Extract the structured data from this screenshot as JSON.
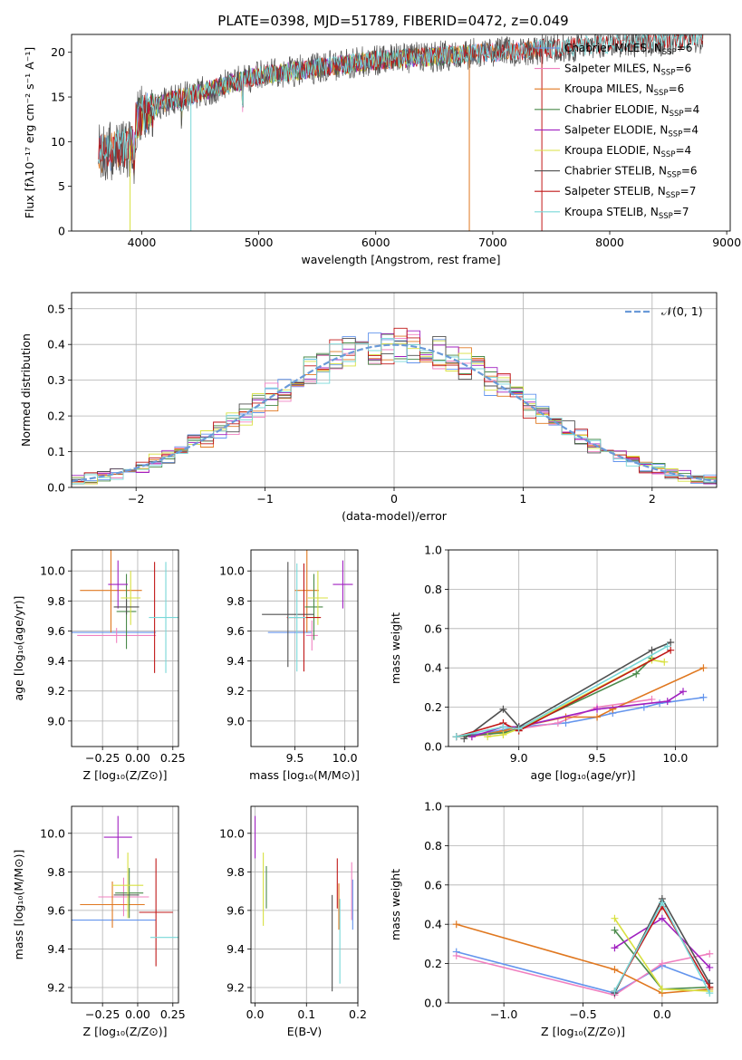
{
  "figure": {
    "title": "PLATE=0398, MJD=51789, FIBERID=0472, z=0.049"
  },
  "colors": {
    "Chabrier MILES": "#6495ed",
    "Salpeter MILES": "#f080c0",
    "Kroupa MILES": "#e07820",
    "Chabrier ELODIE": "#4a8a4a",
    "Salpeter ELODIE": "#a020c0",
    "Kroupa ELODIE": "#d8e040",
    "Chabrier STELIB": "#505050",
    "Salpeter STELIB": "#c01818",
    "Kroupa STELIB": "#78d8d8",
    "gauss": "#6a9ad8"
  },
  "chart_data": [
    {
      "id": "spectrum",
      "type": "line",
      "xlabel": "wavelength [Angstrom, rest frame]",
      "ylabel": "Flux [fλ10⁻¹⁷ erg cm⁻² s⁻¹ A⁻¹]",
      "xlim": [
        3400,
        9030
      ],
      "ylim": [
        0,
        22
      ],
      "xticks": [
        "4000",
        "5000",
        "6000",
        "7000",
        "8000",
        "9000"
      ],
      "xtick_values": [
        4000,
        5000,
        6000,
        7000,
        8000,
        9000
      ],
      "yticks": [
        "0",
        "5",
        "10",
        "15",
        "20"
      ],
      "ytick_values": [
        0,
        5,
        10,
        15,
        20
      ],
      "legend_position": "upper right",
      "series": [
        {
          "name": "Chabrier MILES, N_SSP=6",
          "label_main": "Chabrier MILES, N",
          "label_sub": "SSP",
          "label_end": "=6",
          "color_key": "Chabrier MILES",
          "x_range": [
            3630,
            7420
          ]
        },
        {
          "name": "Salpeter MILES, N_SSP=6",
          "label_main": "Salpeter MILES, N",
          "label_sub": "SSP",
          "label_end": "=6",
          "color_key": "Salpeter MILES",
          "x_range": [
            3630,
            7420
          ]
        },
        {
          "name": "Kroupa MILES, N_SSP=6",
          "label_main": "Kroupa MILES, N",
          "label_sub": "SSP",
          "label_end": "=6",
          "color_key": "Kroupa MILES",
          "x_range": [
            3630,
            7420
          ]
        },
        {
          "name": "Chabrier ELODIE, N_SSP=4",
          "label_main": "Chabrier ELODIE, N",
          "label_sub": "SSP",
          "label_end": "=4",
          "color_key": "Chabrier ELODIE",
          "x_range": [
            3900,
            6800
          ]
        },
        {
          "name": "Salpeter ELODIE, N_SSP=4",
          "label_main": "Salpeter ELODIE, N",
          "label_sub": "SSP",
          "label_end": "=4",
          "color_key": "Salpeter ELODIE",
          "x_range": [
            3900,
            6800
          ]
        },
        {
          "name": "Kroupa ELODIE, N_SSP=4",
          "label_main": "Kroupa ELODIE, N",
          "label_sub": "SSP",
          "label_end": "=4",
          "color_key": "Kroupa ELODIE",
          "x_range": [
            3900,
            6800
          ]
        },
        {
          "name": "Chabrier STELIB, N_SSP=6",
          "label_main": "Chabrier STELIB, N",
          "label_sub": "SSP",
          "label_end": "=6",
          "color_key": "Chabrier STELIB",
          "x_range": [
            3630,
            8800
          ]
        },
        {
          "name": "Salpeter STELIB, N_SSP=7",
          "label_main": "Salpeter STELIB, N",
          "label_sub": "SSP",
          "label_end": "=7",
          "color_key": "Salpeter STELIB",
          "x_range": [
            3630,
            8800
          ]
        },
        {
          "name": "Kroupa STELIB, N_SSP=7",
          "label_main": "Kroupa STELIB, N",
          "label_sub": "SSP",
          "label_end": "=7",
          "color_key": "Kroupa STELIB",
          "x_range": [
            3630,
            8800
          ]
        }
      ]
    },
    {
      "id": "residuals",
      "type": "line",
      "xlabel": "(data-model)/error",
      "ylabel": "Normed distribution",
      "xlim": [
        -2.5,
        2.5
      ],
      "ylim": [
        0,
        0.545
      ],
      "xticks": [
        "−2",
        "−1",
        "0",
        "1",
        "2"
      ],
      "xtick_values": [
        -2,
        -1,
        0,
        1,
        2
      ],
      "yticks": [
        "0.0",
        "0.1",
        "0.2",
        "0.3",
        "0.4",
        "0.5"
      ],
      "ytick_values": [
        0,
        0.1,
        0.2,
        0.3,
        0.4,
        0.5
      ],
      "grid": true,
      "gauss_label": "𝒩(0, 1)",
      "legend_position": "upper right",
      "bins": {
        "start": -2.5,
        "width": 0.1,
        "count": 50
      }
    },
    {
      "id": "age_vs_Z",
      "type": "scatter",
      "xlabel": "Z [log₁₀(Z/Z⊙)]",
      "ylabel": "age  [log₁₀(age/yr)]",
      "xlim": [
        -0.47,
        0.29
      ],
      "ylim": [
        8.83,
        10.14
      ],
      "xticks": [
        "−0.25",
        "0.00",
        "0.25"
      ],
      "xtick_values": [
        -0.25,
        0,
        0.25
      ],
      "yticks": [
        "9.0",
        "9.2",
        "9.4",
        "9.6",
        "9.8",
        "10.0"
      ],
      "ytick_values": [
        9.0,
        9.2,
        9.4,
        9.6,
        9.8,
        10.0
      ],
      "grid": true,
      "points": [
        {
          "key": "Chabrier MILES",
          "x": -0.2,
          "xerr": 0.33,
          "y": 9.59,
          "yerr": 0.0
        },
        {
          "key": "Salpeter MILES",
          "x": -0.15,
          "xerr": 0.28,
          "y": 9.57,
          "yerr": 0.05
        },
        {
          "key": "Kroupa MILES",
          "x": -0.19,
          "xerr": 0.22,
          "y": 9.87,
          "yerr": 0.28
        },
        {
          "key": "Chabrier ELODIE",
          "x": -0.08,
          "xerr": 0.07,
          "y": 9.73,
          "yerr": 0.25
        },
        {
          "key": "Salpeter ELODIE",
          "x": -0.14,
          "xerr": 0.07,
          "y": 9.91,
          "yerr": 0.16
        },
        {
          "key": "Kroupa ELODIE",
          "x": -0.05,
          "xerr": 0.07,
          "y": 9.82,
          "yerr": 0.18
        },
        {
          "key": "Chabrier STELIB",
          "x": -0.08,
          "xerr": 0.09,
          "y": 9.76,
          "yerr": 0.05
        },
        {
          "key": "Salpeter STELIB",
          "x": 0.12,
          "xerr": 0.0,
          "y": 9.69,
          "yerr": 0.37
        },
        {
          "key": "Kroupa STELIB",
          "x": 0.2,
          "xerr": 0.12,
          "y": 9.69,
          "yerr": 0.37
        }
      ]
    },
    {
      "id": "age_vs_mass",
      "type": "scatter",
      "xlabel": "mass [log₁₀(M/M⊙)]",
      "ylabel": "",
      "xlim": [
        9.06,
        10.13
      ],
      "ylim": [
        8.83,
        10.14
      ],
      "xticks": [
        "9.5",
        "10.0"
      ],
      "xtick_values": [
        9.5,
        10.0
      ],
      "yticks": [
        "9.0",
        "9.2",
        "9.4",
        "9.6",
        "9.8",
        "10.0"
      ],
      "ytick_values": [
        9.0,
        9.2,
        9.4,
        9.6,
        9.8,
        10.0
      ],
      "grid": true,
      "points": [
        {
          "key": "Chabrier MILES",
          "x": 9.45,
          "xerr": 0.22,
          "y": 9.59,
          "yerr": 0.0
        },
        {
          "key": "Salpeter MILES",
          "x": 9.67,
          "xerr": 0.06,
          "y": 9.57,
          "yerr": 0.1
        },
        {
          "key": "Kroupa MILES",
          "x": 9.62,
          "xerr": 0.12,
          "y": 9.87,
          "yerr": 0.28
        },
        {
          "key": "Chabrier ELODIE",
          "x": 9.69,
          "xerr": 0.09,
          "y": 9.76,
          "yerr": 0.22
        },
        {
          "key": "Salpeter ELODIE",
          "x": 9.98,
          "xerr": 0.1,
          "y": 9.91,
          "yerr": 0.16
        },
        {
          "key": "Kroupa ELODIE",
          "x": 9.73,
          "xerr": 0.1,
          "y": 9.82,
          "yerr": 0.18
        },
        {
          "key": "Chabrier STELIB",
          "x": 9.43,
          "xerr": 0.26,
          "y": 9.71,
          "yerr": 0.35
        },
        {
          "key": "Salpeter STELIB",
          "x": 9.59,
          "xerr": 0.17,
          "y": 9.69,
          "yerr": 0.36
        },
        {
          "key": "Kroupa STELIB",
          "x": 9.52,
          "xerr": 0.09,
          "y": 9.69,
          "yerr": 0.36
        }
      ]
    },
    {
      "id": "mass_weight_vs_age",
      "type": "line",
      "xlabel": "age  [log₁₀(age/yr)]",
      "ylabel": "mass weight",
      "xlim": [
        8.55,
        10.27
      ],
      "ylim": [
        0,
        1
      ],
      "xticks": [
        "9.0",
        "9.5",
        "10.0"
      ],
      "xtick_values": [
        9.0,
        9.5,
        10.0
      ],
      "yticks": [
        "0.0",
        "0.2",
        "0.4",
        "0.6",
        "0.8",
        "1.0"
      ],
      "ytick_values": [
        0,
        0.2,
        0.4,
        0.6,
        0.8,
        1.0
      ],
      "grid": true,
      "series": [
        {
          "key": "Chabrier MILES",
          "x": [
            8.6,
            8.8,
            9.0,
            9.3,
            9.5,
            9.6,
            9.8,
            9.9,
            10.18
          ],
          "y": [
            0.05,
            0.07,
            0.1,
            0.12,
            0.15,
            0.17,
            0.2,
            0.22,
            0.25
          ]
        },
        {
          "key": "Salpeter MILES",
          "x": [
            8.6,
            8.8,
            9.0,
            9.25,
            9.5,
            9.85
          ],
          "y": [
            0.05,
            0.06,
            0.09,
            0.12,
            0.2,
            0.24
          ]
        },
        {
          "key": "Kroupa MILES",
          "x": [
            8.7,
            8.9,
            9.0,
            9.3,
            9.5,
            9.6,
            10.18
          ],
          "y": [
            0.05,
            0.08,
            0.1,
            0.15,
            0.15,
            0.19,
            0.4
          ]
        },
        {
          "key": "Chabrier ELODIE",
          "x": [
            8.6,
            8.9,
            9.0,
            9.75,
            9.85
          ],
          "y": [
            0.05,
            0.07,
            0.09,
            0.37,
            0.45
          ]
        },
        {
          "key": "Salpeter ELODIE",
          "x": [
            8.7,
            8.9,
            9.0,
            9.5,
            9.95,
            10.05
          ],
          "y": [
            0.05,
            0.1,
            0.1,
            0.19,
            0.23,
            0.28
          ]
        },
        {
          "key": "Kroupa ELODIE",
          "x": [
            8.8,
            8.9,
            9.0,
            9.85,
            9.93
          ],
          "y": [
            0.05,
            0.06,
            0.09,
            0.44,
            0.43
          ]
        },
        {
          "key": "Chabrier STELIB",
          "x": [
            8.65,
            8.9,
            9.0,
            9.85,
            9.97
          ],
          "y": [
            0.04,
            0.19,
            0.1,
            0.49,
            0.53
          ]
        },
        {
          "key": "Salpeter STELIB",
          "x": [
            8.6,
            8.9,
            9.0,
            9.97
          ],
          "y": [
            0.05,
            0.12,
            0.08,
            0.49
          ]
        },
        {
          "key": "Kroupa STELIB",
          "x": [
            8.6,
            8.9,
            9.0,
            9.95
          ],
          "y": [
            0.05,
            0.1,
            0.09,
            0.51
          ]
        }
      ]
    },
    {
      "id": "mass_vs_Z",
      "type": "scatter",
      "xlabel": "Z [log₁₀(Z/Z⊙)]",
      "ylabel": "mass [log₁₀(M/M⊙)]",
      "xlim": [
        -0.47,
        0.29
      ],
      "ylim": [
        9.12,
        10.14
      ],
      "xticks": [
        "−0.25",
        "0.00",
        "0.25"
      ],
      "xtick_values": [
        -0.25,
        0,
        0.25
      ],
      "yticks": [
        "9.2",
        "9.4",
        "9.6",
        "9.8",
        "10.0"
      ],
      "ytick_values": [
        9.2,
        9.4,
        9.6,
        9.8,
        10.0
      ],
      "grid": true,
      "points": [
        {
          "key": "Chabrier MILES",
          "x": -0.2,
          "xerr": 0.33,
          "y": 9.55,
          "yerr": 0.0
        },
        {
          "key": "Salpeter MILES",
          "x": -0.1,
          "xerr": 0.18,
          "y": 9.67,
          "yerr": 0.1
        },
        {
          "key": "Kroupa MILES",
          "x": -0.18,
          "xerr": 0.23,
          "y": 9.63,
          "yerr": 0.12
        },
        {
          "key": "Chabrier ELODIE",
          "x": -0.06,
          "xerr": 0.1,
          "y": 9.69,
          "yerr": 0.13
        },
        {
          "key": "Salpeter ELODIE",
          "x": -0.14,
          "xerr": 0.1,
          "y": 9.98,
          "yerr": 0.11
        },
        {
          "key": "Kroupa ELODIE",
          "x": -0.07,
          "xerr": 0.11,
          "y": 9.73,
          "yerr": 0.17
        },
        {
          "key": "Chabrier STELIB",
          "x": -0.08,
          "xerr": 0.09,
          "y": 9.68,
          "yerr": 0.0
        },
        {
          "key": "Salpeter STELIB",
          "x": 0.13,
          "xerr": 0.12,
          "y": 9.59,
          "yerr": 0.28
        },
        {
          "key": "Kroupa STELIB",
          "x": 0.19,
          "xerr": 0.1,
          "y": 9.46,
          "yerr": 0.0
        }
      ]
    },
    {
      "id": "mass_vs_ebv",
      "type": "scatter",
      "xlabel": "E(B-V)",
      "ylabel": "",
      "xlim": [
        -0.008,
        0.2
      ],
      "ylim": [
        9.12,
        10.14
      ],
      "xticks": [
        "0.0",
        "0.1",
        "0.2"
      ],
      "xtick_values": [
        0,
        0.1,
        0.2
      ],
      "yticks": [
        "9.2",
        "9.4",
        "9.6",
        "9.8",
        "10.0"
      ],
      "ytick_values": [
        9.2,
        9.4,
        9.6,
        9.8,
        10.0
      ],
      "grid": true,
      "points": [
        {
          "key": "Salpeter ELODIE",
          "x": 0.0,
          "xerr": 0,
          "y": 9.98,
          "yerr": 0.11
        },
        {
          "key": "Kroupa ELODIE",
          "x": 0.016,
          "xerr": 0,
          "y": 9.71,
          "yerr": 0.19
        },
        {
          "key": "Chabrier ELODIE",
          "x": 0.022,
          "xerr": 0,
          "y": 9.72,
          "yerr": 0.11
        },
        {
          "key": "Chabrier STELIB",
          "x": 0.15,
          "xerr": 0,
          "y": 9.43,
          "yerr": 0.25
        },
        {
          "key": "Salpeter STELIB",
          "x": 0.16,
          "xerr": 0,
          "y": 9.74,
          "yerr": 0.13
        },
        {
          "key": "Kroupa MILES",
          "x": 0.163,
          "xerr": 0,
          "y": 9.62,
          "yerr": 0.12
        },
        {
          "key": "Kroupa STELIB",
          "x": 0.165,
          "xerr": 0,
          "y": 9.44,
          "yerr": 0.22
        },
        {
          "key": "Salpeter MILES",
          "x": 0.188,
          "xerr": 0,
          "y": 9.7,
          "yerr": 0.15
        },
        {
          "key": "Chabrier MILES",
          "x": 0.19,
          "xerr": 0,
          "y": 9.63,
          "yerr": 0.13
        }
      ]
    },
    {
      "id": "mass_weight_vs_Z",
      "type": "line",
      "xlabel": "Z [log₁₀(Z/Z⊙)]",
      "ylabel": "mass weight",
      "xlim": [
        -1.35,
        0.35
      ],
      "ylim": [
        0,
        1
      ],
      "xticks": [
        "−1.0",
        "−0.5",
        "0.0"
      ],
      "xtick_values": [
        -1.0,
        -0.5,
        0.0
      ],
      "yticks": [
        "0.0",
        "0.2",
        "0.4",
        "0.6",
        "0.8",
        "1.0"
      ],
      "ytick_values": [
        0,
        0.2,
        0.4,
        0.6,
        0.8,
        1.0
      ],
      "grid": true,
      "series": [
        {
          "key": "Chabrier MILES",
          "x": [
            -1.3,
            -0.3,
            0.0,
            0.3
          ],
          "y": [
            0.26,
            0.05,
            0.19,
            0.1
          ]
        },
        {
          "key": "Salpeter MILES",
          "x": [
            -1.3,
            -0.3,
            0.0,
            0.3
          ],
          "y": [
            0.24,
            0.04,
            0.2,
            0.25
          ]
        },
        {
          "key": "Kroupa MILES",
          "x": [
            -1.3,
            -0.3,
            0.0,
            0.3
          ],
          "y": [
            0.4,
            0.17,
            0.05,
            0.07
          ]
        },
        {
          "key": "Chabrier ELODIE",
          "x": [
            -0.3,
            0.0,
            0.3
          ],
          "y": [
            0.37,
            0.07,
            0.08
          ]
        },
        {
          "key": "Salpeter ELODIE",
          "x": [
            -0.3,
            0.0,
            0.3
          ],
          "y": [
            0.28,
            0.43,
            0.18
          ]
        },
        {
          "key": "Kroupa ELODIE",
          "x": [
            -0.3,
            0.0,
            0.3
          ],
          "y": [
            0.43,
            0.07,
            0.06
          ]
        },
        {
          "key": "Chabrier STELIB",
          "x": [
            -0.3,
            0.0,
            0.3
          ],
          "y": [
            0.05,
            0.53,
            0.1
          ]
        },
        {
          "key": "Salpeter STELIB",
          "x": [
            -0.3,
            0.0,
            0.3
          ],
          "y": [
            0.06,
            0.49,
            0.08
          ]
        },
        {
          "key": "Kroupa STELIB",
          "x": [
            -0.3,
            0.0,
            0.3
          ],
          "y": [
            0.06,
            0.51,
            0.05
          ]
        }
      ]
    }
  ]
}
